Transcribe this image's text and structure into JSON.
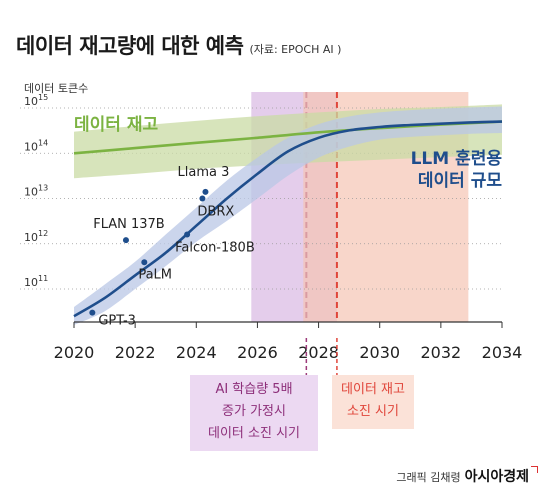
{
  "title": "데이터 재고량에 대한 예측",
  "source": "(자료: EPOCH AI )",
  "credit": {
    "prefix": "그래픽 김채령",
    "brand": "아시아경제"
  },
  "chart_data": {
    "type": "line",
    "ylabel": "데이터 토큰수",
    "y_scale": "log",
    "ylim": [
      10000000000.0,
      1000000000000000.0
    ],
    "xlim": [
      2020,
      2034
    ],
    "x_ticks": [
      2020,
      2022,
      2024,
      2026,
      2028,
      2030,
      2032,
      2034
    ],
    "y_ticks": [
      {
        "value": 100000000000.0,
        "base": "10",
        "exp": "11"
      },
      {
        "value": 1000000000000.0,
        "base": "10",
        "exp": "12"
      },
      {
        "value": 10000000000000.0,
        "base": "10",
        "exp": "13"
      },
      {
        "value": 100000000000000.0,
        "base": "10",
        "exp": "14"
      },
      {
        "value": 1000000000000000.0,
        "base": "10",
        "exp": "15"
      }
    ],
    "grid": "horizontal-dotted",
    "series": [
      {
        "name": "데이터 재고",
        "color": "#7cb342",
        "band_color": "#c9dba4",
        "x": [
          2020,
          2022,
          2024,
          2026,
          2028,
          2030,
          2032,
          2034
        ],
        "values": [
          100000000000000.0,
          130000000000000.0,
          170000000000000.0,
          220000000000000.0,
          290000000000000.0,
          360000000000000.0,
          430000000000000.0,
          500000000000000.0
        ],
        "upper": [
          300000000000000.0,
          400000000000000.0,
          520000000000000.0,
          660000000000000.0,
          800000000000000.0,
          950000000000000.0,
          1050000000000000.0,
          1200000000000000.0
        ],
        "lower": [
          28000000000000.0,
          35000000000000.0,
          45000000000000.0,
          54000000000000.0,
          63000000000000.0,
          72000000000000.0,
          82000000000000.0,
          92000000000000.0
        ]
      },
      {
        "name": "LLM 훈련용\n데이터 규모",
        "color": "#1f4e8c",
        "band_color": "#b9c7e6",
        "x": [
          2020,
          2021,
          2022,
          2023,
          2024,
          2025,
          2026,
          2027,
          2028,
          2029,
          2030,
          2031,
          2032,
          2033,
          2034
        ],
        "values": [
          25000000000.0,
          63000000000.0,
          200000000000.0,
          630000000000.0,
          2500000000000.0,
          10000000000000.0,
          35000000000000.0,
          110000000000000.0,
          220000000000000.0,
          320000000000000.0,
          380000000000000.0,
          420000000000000.0,
          450000000000000.0,
          480000000000000.0,
          500000000000000.0
        ],
        "upper": [
          40000000000.0,
          125000000000.0,
          400000000000.0,
          1600000000000.0,
          6300000000000.0,
          25000000000000.0,
          80000000000000.0,
          220000000000000.0,
          440000000000000.0,
          650000000000000.0,
          800000000000000.0,
          900000000000000.0,
          970000000000000.0,
          1030000000000000.0,
          1080000000000000.0
        ],
        "lower": [
          16000000000.0,
          32000000000.0,
          100000000000.0,
          320000000000.0,
          1100000000000.0,
          3200000000000.0,
          10000000000000.0,
          32000000000000.0,
          80000000000000.0,
          140000000000000.0,
          200000000000000.0,
          230000000000000.0,
          250000000000000.0,
          270000000000000.0,
          280000000000000.0
        ]
      }
    ],
    "models": [
      {
        "label": "GPT-3",
        "x": 2020.6,
        "y": 30000000000.0
      },
      {
        "label": "FLAN 137B",
        "x": 2021.7,
        "y": 1200000000000.0
      },
      {
        "label": "PaLM",
        "x": 2022.3,
        "y": 390000000000.0
      },
      {
        "label": "Falcon-180B",
        "x": 2023.7,
        "y": 1600000000000.0
      },
      {
        "label": "Llama 3",
        "x": 2024.3,
        "y": 14000000000000.0
      },
      {
        "label": "DBRX",
        "x": 2024.2,
        "y": 10000000000000.0
      }
    ],
    "annotations": [
      {
        "kind": "ai_5x",
        "label_lines": [
          "AI 학습량 5배",
          "증가 가정시",
          "데이터 소진 시기"
        ],
        "median_x": 2027.6,
        "range": [
          2025.8,
          2028.6
        ],
        "line_color": "#9c3a7a",
        "band_color": "#d8b8e3",
        "box_color": "#ecd9f2",
        "text_color": "#8d2f7a"
      },
      {
        "kind": "exhaustion",
        "label_lines": [
          "데이터 재고",
          "소진 시기"
        ],
        "median_x": 2028.6,
        "range": [
          2027.5,
          2032.9
        ],
        "line_color": "#e0453a",
        "band_color": "#f5c4b3",
        "box_color": "#fbe2d8",
        "text_color": "#e0453a"
      }
    ]
  }
}
